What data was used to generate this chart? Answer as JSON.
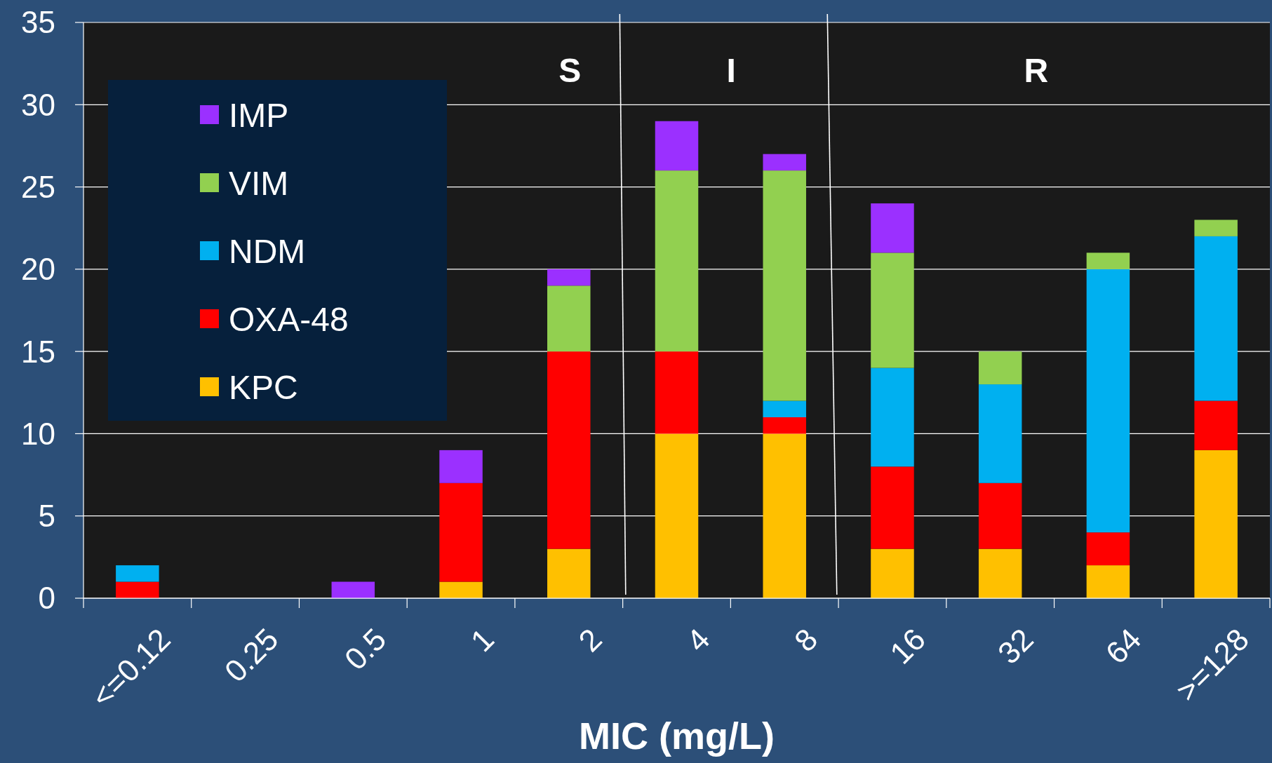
{
  "chart_data": {
    "type": "bar",
    "stacked": true,
    "xlabel": "MIC (mg/L)",
    "categories": [
      "<=0.12",
      "0.25",
      "0.5",
      "1",
      "2",
      "4",
      "8",
      "16",
      "32",
      "64",
      ">=128"
    ],
    "series": [
      {
        "name": "KPC",
        "color": "#ffc000",
        "values": [
          0,
          0,
          0,
          1,
          3,
          10,
          10,
          3,
          3,
          2,
          9
        ]
      },
      {
        "name": "OXA-48",
        "color": "#ff0000",
        "values": [
          1,
          0,
          0,
          6,
          12,
          5,
          1,
          5,
          4,
          2,
          3
        ]
      },
      {
        "name": "NDM",
        "color": "#00b0f0",
        "values": [
          1,
          0,
          0,
          0,
          0,
          0,
          1,
          6,
          6,
          16,
          10
        ]
      },
      {
        "name": "VIM",
        "color": "#92d050",
        "values": [
          0,
          0,
          0,
          0,
          4,
          11,
          14,
          7,
          2,
          1,
          1
        ]
      },
      {
        "name": "IMP",
        "color": "#9b30ff",
        "values": [
          0,
          0,
          1,
          2,
          1,
          3,
          1,
          3,
          0,
          0,
          0
        ]
      }
    ],
    "ylim": [
      0,
      35
    ],
    "yticks": [
      0,
      5,
      10,
      15,
      20,
      25,
      30,
      35
    ],
    "grid": "y",
    "legend": "top left",
    "annotations": [
      "S",
      "I",
      "R"
    ]
  }
}
